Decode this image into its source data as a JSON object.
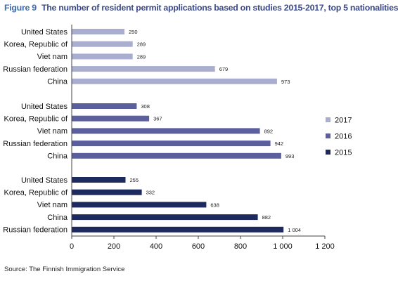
{
  "figure_label": "Figure 9",
  "title": "The number of resident permit applications based on studies 2015-2017, top 5 nationalities",
  "source": "Source: The Finnish Immigration Service",
  "chart_data": {
    "type": "bar",
    "orientation": "horizontal",
    "grouping": "stacked panels by year",
    "title": "The number of resident permit applications based on studies 2015-2017, top 5 nationalities",
    "xlim": [
      0,
      1200
    ],
    "x_ticks": [
      "0",
      "200",
      "400",
      "600",
      "800",
      "1 000",
      "1 200"
    ],
    "x_tick_values": [
      0,
      200,
      400,
      600,
      800,
      1000,
      1200
    ],
    "grid": false,
    "legend_position": "right",
    "series": [
      {
        "name": "2017",
        "color": "#a9aed0",
        "categories": [
          "United States",
          "Korea, Republic of",
          "Viet nam",
          "Russian federation",
          "China"
        ],
        "values": [
          250,
          289,
          289,
          679,
          973
        ],
        "labels": [
          "250",
          "289",
          "289",
          "679",
          "973"
        ]
      },
      {
        "name": "2016",
        "color": "#5b5f9e",
        "categories": [
          "United States",
          "Korea, Republic of",
          "Viet nam",
          "Russian federation",
          "China"
        ],
        "values": [
          308,
          367,
          892,
          942,
          993
        ],
        "labels": [
          "308",
          "367",
          "892",
          "942",
          "993"
        ]
      },
      {
        "name": "2015",
        "color": "#1c2a5e",
        "categories": [
          "United States",
          "Korea, Republic of",
          "Viet nam",
          "China",
          "Russian federation"
        ],
        "values": [
          255,
          332,
          638,
          882,
          1004
        ],
        "labels": [
          "255",
          "332",
          "638",
          "882",
          "1 004"
        ]
      }
    ],
    "legend": [
      {
        "name": "2017",
        "color": "#a9aed0"
      },
      {
        "name": "2016",
        "color": "#5b5f9e"
      },
      {
        "name": "2015",
        "color": "#1c2a5e"
      }
    ]
  }
}
